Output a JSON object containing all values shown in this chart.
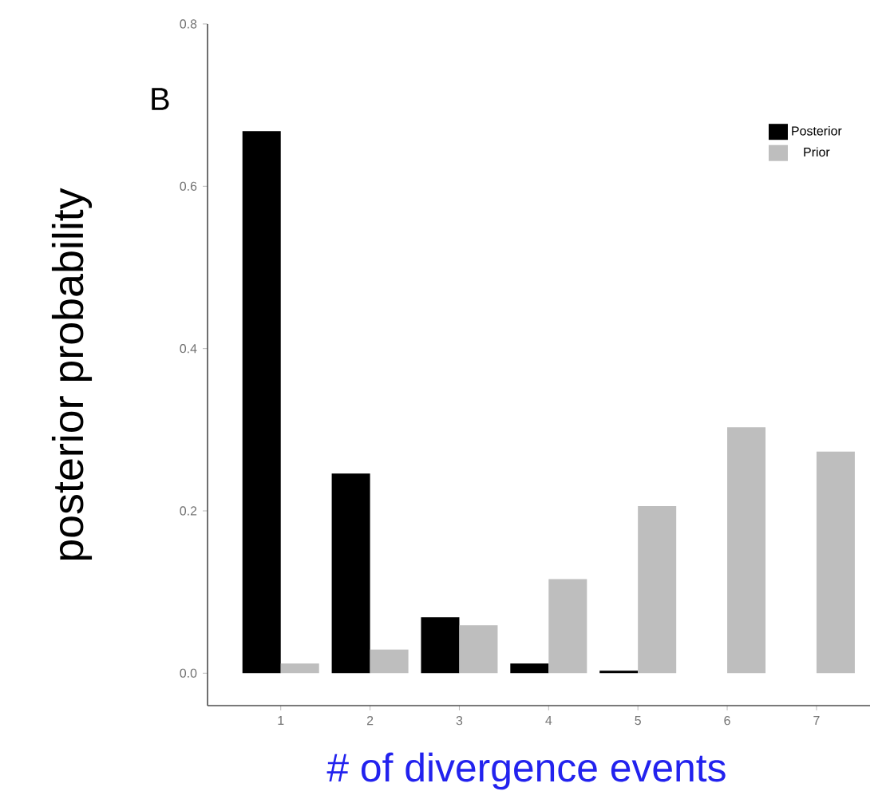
{
  "chart_data": {
    "type": "bar",
    "xlabel": "# of divergence events",
    "ylabel": "posterior probability",
    "annotations": [
      "B"
    ],
    "categories": [
      "1",
      "2",
      "3",
      "4",
      "5",
      "6",
      "7"
    ],
    "series": [
      {
        "name": "Posterior",
        "color": "#000000",
        "values": [
          0.668,
          0.246,
          0.069,
          0.012,
          0.003,
          0,
          0
        ]
      },
      {
        "name": "Prior",
        "color": "#bebebe",
        "values": [
          0.012,
          0.029,
          0.059,
          0.116,
          0.206,
          0.303,
          0.273
        ]
      }
    ],
    "ylim": [
      -0.04,
      0.8
    ],
    "yticks": [
      {
        "value": 0,
        "label": "0.0"
      },
      0.2,
      0.4,
      0.6,
      0.8
    ],
    "legend": "top right"
  }
}
